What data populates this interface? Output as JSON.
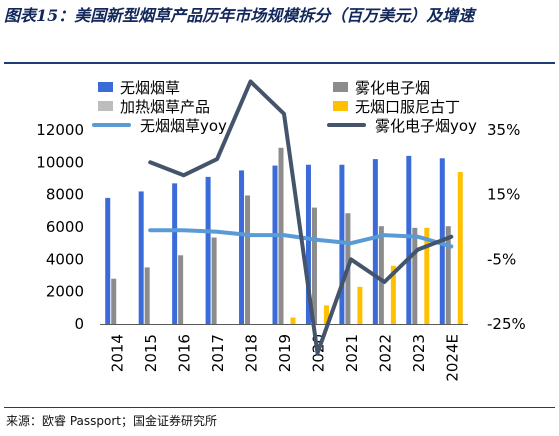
{
  "title": "图表15：美国新型烟草产品历年市场规模拆分（百万美元）及增速",
  "source": "来源：欧睿 Passport；国金证券研究所",
  "chart_data": {
    "type": "bar",
    "categories": [
      "2014",
      "2015",
      "2016",
      "2017",
      "2018",
      "2019",
      "2020",
      "2021",
      "2022",
      "2023",
      "2024E"
    ],
    "y_left": {
      "lim": [
        0,
        12000
      ],
      "ticks": [
        "0",
        "2000",
        "4000",
        "6000",
        "8000",
        "10000",
        "12000"
      ]
    },
    "y_right": {
      "lim": [
        -0.25,
        0.35
      ],
      "ticks": [
        "-25%",
        "-5%",
        "15%",
        "35%"
      ]
    },
    "grid": false,
    "legend_position": "top",
    "series": [
      {
        "name": "无烟烟草",
        "kind": "bar",
        "color": "#3a6bd8",
        "values": [
          7800,
          8200,
          8700,
          9100,
          9500,
          9800,
          9850,
          9850,
          10200,
          10400,
          10250
        ]
      },
      {
        "name": "雾化电子烟",
        "kind": "bar",
        "color": "#8c8c8c",
        "values": [
          2800,
          3500,
          4250,
          5350,
          7950,
          10900,
          7200,
          6850,
          6050,
          5950,
          6050
        ]
      },
      {
        "name": "加热烟草产品",
        "kind": "bar",
        "color": "#bdbdbd",
        "values": [
          null,
          null,
          null,
          null,
          null,
          null,
          null,
          null,
          null,
          null,
          null
        ]
      },
      {
        "name": "无烟口服尼古丁",
        "kind": "bar",
        "color": "#ffc000",
        "values": [
          null,
          null,
          null,
          null,
          null,
          400,
          1150,
          2300,
          3600,
          5950,
          9400
        ]
      },
      {
        "name": "无烟烟草yoy",
        "kind": "line",
        "axis": "right",
        "color": "#5b9bd5",
        "values": [
          null,
          0.04,
          0.04,
          0.035,
          0.025,
          0.025,
          0.01,
          0.0,
          0.025,
          0.02,
          -0.01
        ]
      },
      {
        "name": "雾化电子烟yoy",
        "kind": "line",
        "axis": "right",
        "color": "#44546a",
        "values": [
          null,
          0.25,
          0.21,
          0.26,
          0.5,
          0.4,
          -0.34,
          -0.05,
          -0.12,
          -0.02,
          0.02
        ]
      }
    ]
  }
}
